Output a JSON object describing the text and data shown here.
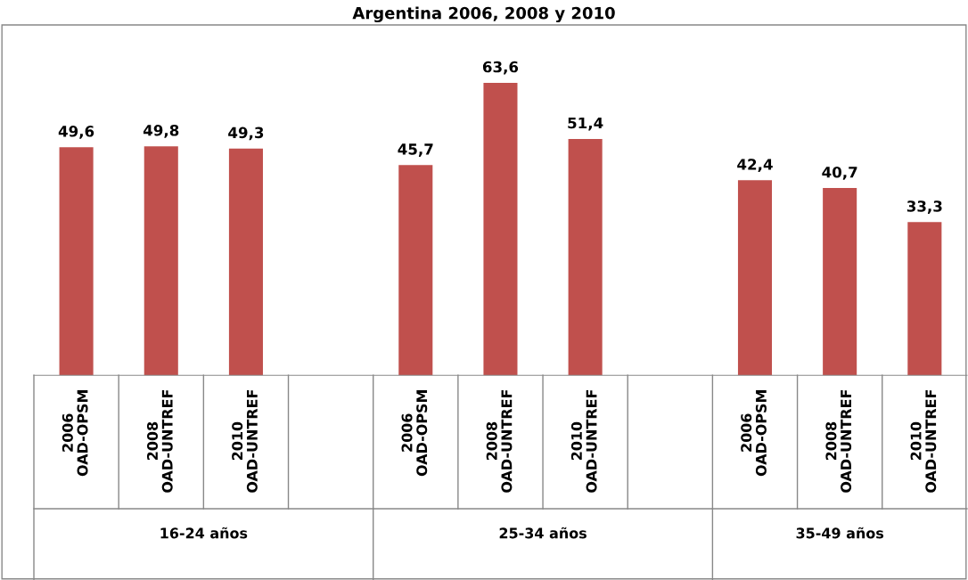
{
  "chart_data": {
    "type": "bar",
    "title": "Argentina 2006, 2008 y 2010",
    "categories": [
      "2006\nOAD-OPSM",
      "2008\nOAD-UNTREF",
      "2010\nOAD-UNTREF",
      null,
      "2006\nOAD-OPSM",
      "2008\nOAD-UNTREF",
      "2010\nOAD-UNTREF",
      null,
      "2006\nOAD-OPSM",
      "2008\nOAD-UNTREF",
      "2010\nOAD-UNTREF"
    ],
    "values": [
      49.6,
      49.8,
      49.3,
      null,
      45.7,
      63.6,
      51.4,
      null,
      42.4,
      40.7,
      33.3
    ],
    "value_labels": [
      "49,6",
      "49,8",
      "49,3",
      null,
      "45,7",
      "63,6",
      "51,4",
      null,
      "42,4",
      "40,7",
      "33,3"
    ],
    "color": "#c0504d",
    "annotations": [
      "16-24 años",
      "25-34 años",
      "35-49 años"
    ]
  }
}
